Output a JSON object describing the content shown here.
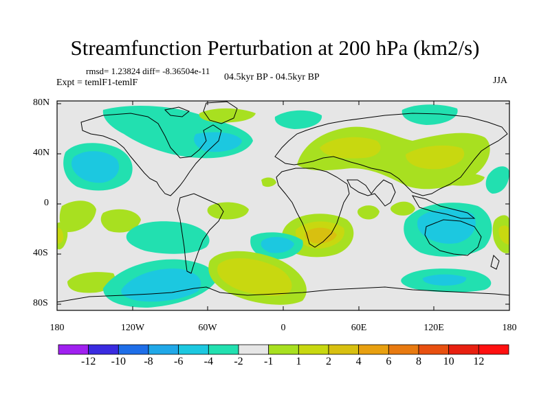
{
  "title": "Streamfunction Perturbation at 200 hPa (km2/s)",
  "stats": "rmsd= 1.23824 diff= -8.36504e-11",
  "experiment": "Expt = temlF1-temlF",
  "period": "04.5kyr BP - 04.5kyr BP",
  "season": "JJA",
  "lat_labels": [
    "80N",
    "40N",
    "0",
    "40S",
    "80S"
  ],
  "lon_labels": [
    "180",
    "120W",
    "60W",
    "0",
    "60E",
    "120E",
    "180"
  ],
  "colorbar": {
    "labels": [
      "-12",
      "-10",
      "-8",
      "-6",
      "-4",
      "-2",
      "-1",
      "1",
      "2",
      "4",
      "6",
      "8",
      "10",
      "12"
    ],
    "colors": [
      "#a020f0",
      "#3a2be0",
      "#1e6ee8",
      "#20a8e8",
      "#1cc8e0",
      "#22e0b0",
      "#e6e6e6",
      "#a8e020",
      "#c8d810",
      "#d8c010",
      "#e8a010",
      "#e87a10",
      "#e85010",
      "#e82010",
      "#ff1010"
    ]
  },
  "fill_colors": {
    "neg1": "#22e0b0",
    "neg2": "#1cc8e0",
    "pos1": "#a8e020",
    "pos2": "#c8d810",
    "pos3": "#d8c010",
    "background": "#e6e6e6"
  }
}
